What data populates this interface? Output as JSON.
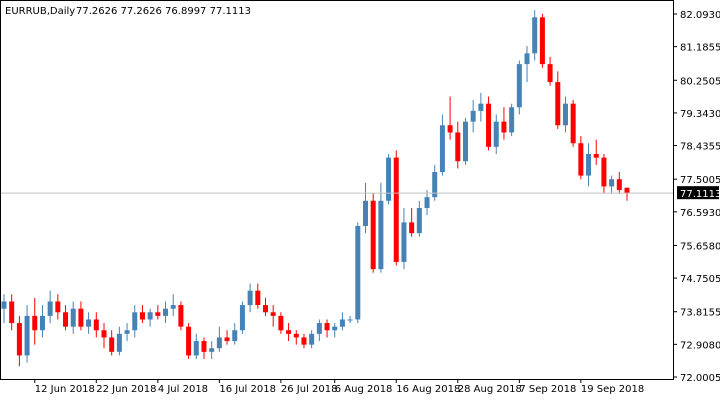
{
  "header": {
    "symbol": "EURRUB,Daily",
    "ohlc": "77.2626 77.2626 76.8997 77.1113"
  },
  "colors": {
    "up": "#4682b4",
    "down": "#ff0000",
    "axis": "#000000",
    "price_line": "#c0c0c0",
    "price_tag_bg": "#000000",
    "price_tag_text": "#ffffff"
  },
  "chart_data": {
    "type": "candlestick",
    "title": "EURRUB,Daily",
    "grid": false,
    "y_range": [
      72.0,
      82.25
    ],
    "y_ticks": [
      "82.0930",
      "81.1855",
      "80.2505",
      "79.3430",
      "78.4355",
      "77.5005",
      "76.5930",
      "75.6580",
      "74.7505",
      "73.8155",
      "72.9080",
      "72.0005"
    ],
    "x_ticks": [
      "12 Jun 2018",
      "22 Jun 2018",
      "4 Jul 2018",
      "16 Jul 2018",
      "26 Jul 2018",
      "6 Aug 2018",
      "16 Aug 2018",
      "28 Aug 2018",
      "7 Sep 2018",
      "19 Sep 2018"
    ],
    "current_price": "77.1113",
    "series": [
      {
        "date": "6 Jun 2018",
        "open": 73.9,
        "high": 74.3,
        "low": 73.5,
        "close": 74.1
      },
      {
        "date": "7 Jun 2018",
        "open": 74.1,
        "high": 74.3,
        "low": 73.3,
        "close": 73.5
      },
      {
        "date": "8 Jun 2018",
        "open": 73.5,
        "high": 73.7,
        "low": 72.3,
        "close": 72.6
      },
      {
        "date": "11 Jun 2018",
        "open": 72.6,
        "high": 74.0,
        "low": 72.4,
        "close": 73.7
      },
      {
        "date": "12 Jun 2018",
        "open": 73.7,
        "high": 74.2,
        "low": 72.9,
        "close": 73.3
      },
      {
        "date": "13 Jun 2018",
        "open": 73.3,
        "high": 74.0,
        "low": 73.1,
        "close": 73.7
      },
      {
        "date": "14 Jun 2018",
        "open": 73.7,
        "high": 74.4,
        "low": 73.5,
        "close": 74.1
      },
      {
        "date": "15 Jun 2018",
        "open": 74.1,
        "high": 74.3,
        "low": 73.6,
        "close": 73.8
      },
      {
        "date": "18 Jun 2018",
        "open": 73.8,
        "high": 74.0,
        "low": 73.3,
        "close": 73.4
      },
      {
        "date": "19 Jun 2018",
        "open": 73.4,
        "high": 74.1,
        "low": 73.2,
        "close": 73.9
      },
      {
        "date": "20 Jun 2018",
        "open": 73.9,
        "high": 74.1,
        "low": 73.3,
        "close": 73.4
      },
      {
        "date": "21 Jun 2018",
        "open": 73.4,
        "high": 73.8,
        "low": 73.2,
        "close": 73.6
      },
      {
        "date": "22 Jun 2018",
        "open": 73.6,
        "high": 73.8,
        "low": 73.1,
        "close": 73.3
      },
      {
        "date": "25 Jun 2018",
        "open": 73.3,
        "high": 73.5,
        "low": 72.8,
        "close": 73.1
      },
      {
        "date": "26 Jun 2018",
        "open": 73.1,
        "high": 73.3,
        "low": 72.6,
        "close": 72.7
      },
      {
        "date": "27 Jun 2018",
        "open": 72.7,
        "high": 73.4,
        "low": 72.6,
        "close": 73.2
      },
      {
        "date": "28 Jun 2018",
        "open": 73.2,
        "high": 73.5,
        "low": 73.0,
        "close": 73.3
      },
      {
        "date": "29 Jun 2018",
        "open": 73.3,
        "high": 74.0,
        "low": 73.1,
        "close": 73.8
      },
      {
        "date": "2 Jul 2018",
        "open": 73.8,
        "high": 74.0,
        "low": 73.5,
        "close": 73.6
      },
      {
        "date": "3 Jul 2018",
        "open": 73.6,
        "high": 73.9,
        "low": 73.4,
        "close": 73.8
      },
      {
        "date": "4 Jul 2018",
        "open": 73.8,
        "high": 74.0,
        "low": 73.6,
        "close": 73.7
      },
      {
        "date": "5 Jul 2018",
        "open": 73.7,
        "high": 74.1,
        "low": 73.5,
        "close": 73.9
      },
      {
        "date": "6 Jul 2018",
        "open": 73.9,
        "high": 74.3,
        "low": 73.7,
        "close": 74.0
      },
      {
        "date": "9 Jul 2018",
        "open": 74.0,
        "high": 74.1,
        "low": 73.3,
        "close": 73.4
      },
      {
        "date": "10 Jul 2018",
        "open": 73.4,
        "high": 73.5,
        "low": 72.5,
        "close": 72.6
      },
      {
        "date": "11 Jul 2018",
        "open": 72.6,
        "high": 73.2,
        "low": 72.5,
        "close": 73.0
      },
      {
        "date": "12 Jul 2018",
        "open": 73.0,
        "high": 73.1,
        "low": 72.5,
        "close": 72.7
      },
      {
        "date": "13 Jul 2018",
        "open": 72.7,
        "high": 73.0,
        "low": 72.5,
        "close": 72.8
      },
      {
        "date": "16 Jul 2018",
        "open": 72.8,
        "high": 73.4,
        "low": 72.7,
        "close": 73.1
      },
      {
        "date": "17 Jul 2018",
        "open": 73.1,
        "high": 73.3,
        "low": 72.9,
        "close": 73.0
      },
      {
        "date": "18 Jul 2018",
        "open": 73.0,
        "high": 73.5,
        "low": 72.9,
        "close": 73.3
      },
      {
        "date": "19 Jul 2018",
        "open": 73.3,
        "high": 74.1,
        "low": 73.2,
        "close": 74.0
      },
      {
        "date": "20 Jul 2018",
        "open": 74.0,
        "high": 74.6,
        "low": 73.8,
        "close": 74.4
      },
      {
        "date": "23 Jul 2018",
        "open": 74.4,
        "high": 74.6,
        "low": 73.9,
        "close": 74.0
      },
      {
        "date": "24 Jul 2018",
        "open": 74.0,
        "high": 74.2,
        "low": 73.7,
        "close": 73.8
      },
      {
        "date": "25 Jul 2018",
        "open": 73.8,
        "high": 74.0,
        "low": 73.4,
        "close": 73.7
      },
      {
        "date": "26 Jul 2018",
        "open": 73.7,
        "high": 73.8,
        "low": 73.2,
        "close": 73.3
      },
      {
        "date": "27 Jul 2018",
        "open": 73.3,
        "high": 73.5,
        "low": 73.0,
        "close": 73.2
      },
      {
        "date": "30 Jul 2018",
        "open": 73.2,
        "high": 73.3,
        "low": 72.9,
        "close": 73.1
      },
      {
        "date": "31 Jul 2018",
        "open": 73.1,
        "high": 73.2,
        "low": 72.8,
        "close": 72.9
      },
      {
        "date": "1 Aug 2018",
        "open": 72.9,
        "high": 73.3,
        "low": 72.8,
        "close": 73.2
      },
      {
        "date": "2 Aug 2018",
        "open": 73.2,
        "high": 73.6,
        "low": 73.0,
        "close": 73.5
      },
      {
        "date": "3 Aug 2018",
        "open": 73.5,
        "high": 73.6,
        "low": 73.1,
        "close": 73.3
      },
      {
        "date": "6 Aug 2018",
        "open": 73.3,
        "high": 73.5,
        "low": 73.1,
        "close": 73.4
      },
      {
        "date": "7 Aug 2018",
        "open": 73.4,
        "high": 73.8,
        "low": 73.3,
        "close": 73.6
      },
      {
        "date": "8 Aug 2018",
        "open": 73.6,
        "high": 73.7,
        "low": 73.5,
        "close": 73.6
      },
      {
        "date": "9 Aug 2018",
        "open": 73.6,
        "high": 76.3,
        "low": 73.5,
        "close": 76.2
      },
      {
        "date": "10 Aug 2018",
        "open": 76.2,
        "high": 77.4,
        "low": 76.0,
        "close": 76.9
      },
      {
        "date": "13 Aug 2018",
        "open": 76.9,
        "high": 77.1,
        "low": 74.9,
        "close": 75.0
      },
      {
        "date": "14 Aug 2018",
        "open": 75.0,
        "high": 77.4,
        "low": 74.9,
        "close": 76.9
      },
      {
        "date": "15 Aug 2018",
        "open": 76.9,
        "high": 78.2,
        "low": 76.8,
        "close": 78.1
      },
      {
        "date": "16 Aug 2018",
        "open": 78.1,
        "high": 78.3,
        "low": 75.1,
        "close": 75.2
      },
      {
        "date": "17 Aug 2018",
        "open": 75.2,
        "high": 76.7,
        "low": 75.0,
        "close": 76.3
      },
      {
        "date": "20 Aug 2018",
        "open": 76.3,
        "high": 76.7,
        "low": 75.9,
        "close": 76.0
      },
      {
        "date": "21 Aug 2018",
        "open": 76.0,
        "high": 76.9,
        "low": 75.9,
        "close": 76.7
      },
      {
        "date": "22 Aug 2018",
        "open": 76.7,
        "high": 77.2,
        "low": 76.5,
        "close": 77.0
      },
      {
        "date": "23 Aug 2018",
        "open": 77.0,
        "high": 77.9,
        "low": 76.9,
        "close": 77.7
      },
      {
        "date": "24 Aug 2018",
        "open": 77.7,
        "high": 79.3,
        "low": 77.6,
        "close": 79.0
      },
      {
        "date": "27 Aug 2018",
        "open": 79.0,
        "high": 79.8,
        "low": 78.6,
        "close": 78.8
      },
      {
        "date": "28 Aug 2018",
        "open": 78.8,
        "high": 79.1,
        "low": 77.8,
        "close": 78.0
      },
      {
        "date": "29 Aug 2018",
        "open": 78.0,
        "high": 79.2,
        "low": 77.9,
        "close": 79.1
      },
      {
        "date": "30 Aug 2018",
        "open": 79.1,
        "high": 79.7,
        "low": 78.8,
        "close": 79.4
      },
      {
        "date": "31 Aug 2018",
        "open": 79.4,
        "high": 79.9,
        "low": 79.1,
        "close": 79.6
      },
      {
        "date": "3 Sep 2018",
        "open": 79.6,
        "high": 79.8,
        "low": 78.3,
        "close": 78.4
      },
      {
        "date": "4 Sep 2018",
        "open": 78.4,
        "high": 79.3,
        "low": 78.2,
        "close": 79.1
      },
      {
        "date": "5 Sep 2018",
        "open": 79.1,
        "high": 79.5,
        "low": 78.6,
        "close": 78.8
      },
      {
        "date": "6 Sep 2018",
        "open": 78.8,
        "high": 79.6,
        "low": 78.7,
        "close": 79.5
      },
      {
        "date": "7 Sep 2018",
        "open": 79.5,
        "high": 80.8,
        "low": 79.3,
        "close": 80.7
      },
      {
        "date": "10 Sep 2018",
        "open": 80.7,
        "high": 81.2,
        "low": 80.2,
        "close": 81.0
      },
      {
        "date": "11 Sep 2018",
        "open": 81.0,
        "high": 82.2,
        "low": 80.8,
        "close": 82.0
      },
      {
        "date": "12 Sep 2018",
        "open": 82.0,
        "high": 82.1,
        "low": 80.6,
        "close": 80.7
      },
      {
        "date": "13 Sep 2018",
        "open": 80.7,
        "high": 80.9,
        "low": 80.1,
        "close": 80.2
      },
      {
        "date": "14 Sep 2018",
        "open": 80.2,
        "high": 80.5,
        "low": 78.9,
        "close": 79.0
      },
      {
        "date": "17 Sep 2018",
        "open": 79.0,
        "high": 79.8,
        "low": 78.8,
        "close": 79.6
      },
      {
        "date": "18 Sep 2018",
        "open": 79.6,
        "high": 79.7,
        "low": 78.4,
        "close": 78.5
      },
      {
        "date": "19 Sep 2018",
        "open": 78.5,
        "high": 78.7,
        "low": 77.5,
        "close": 77.6
      },
      {
        "date": "20 Sep 2018",
        "open": 77.6,
        "high": 78.5,
        "low": 77.3,
        "close": 78.2
      },
      {
        "date": "21 Sep 2018",
        "open": 78.2,
        "high": 78.6,
        "low": 77.9,
        "close": 78.1
      },
      {
        "date": "24 Sep 2018",
        "open": 78.1,
        "high": 78.2,
        "low": 77.1,
        "close": 77.3
      },
      {
        "date": "25 Sep 2018",
        "open": 77.3,
        "high": 77.6,
        "low": 77.1,
        "close": 77.5
      },
      {
        "date": "26 Sep 2018",
        "open": 77.5,
        "high": 77.7,
        "low": 77.1,
        "close": 77.2
      },
      {
        "date": "27 Sep 2018",
        "open": 77.2626,
        "high": 77.2626,
        "low": 76.8997,
        "close": 77.1113
      }
    ]
  }
}
